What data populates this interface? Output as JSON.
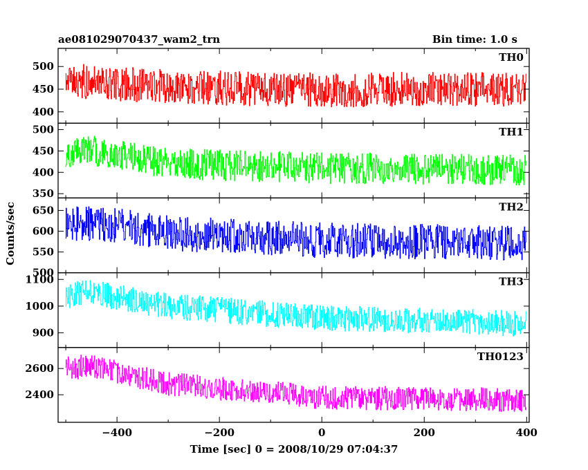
{
  "header": {
    "title": "ae081029070437_wam2_trn",
    "bin_time": "Bin time: 1.0 s"
  },
  "chart_data": {
    "type": "line",
    "title": "ae081029070437_wam2_trn",
    "subtitle": "Bin time: 1.0 s",
    "xlabel": "Time [sec] 0 = 2008/10/29 07:04:37",
    "ylabel": "Counts/sec",
    "xlim": [
      -515,
      405
    ],
    "x_ticks": [
      -400,
      -200,
      0,
      200,
      400
    ],
    "x_tick_labels": [
      "−400",
      "−200",
      "0",
      "200",
      "400"
    ],
    "x_sampling": {
      "start": -500,
      "end": 399,
      "step": 1
    },
    "panels": [
      {
        "name": "TH0",
        "color": "#ff0000",
        "ylim": [
          375,
          540
        ],
        "yticks": [
          400,
          450,
          500
        ],
        "trend": [
          [
            -500,
            470
          ],
          [
            -300,
            455
          ],
          [
            0,
            448
          ],
          [
            200,
            450
          ],
          [
            400,
            450
          ]
        ],
        "noise_amplitude": 38
      },
      {
        "name": "TH1",
        "color": "#00ff00",
        "ylim": [
          340,
          515
        ],
        "yticks": [
          350,
          400,
          450,
          500
        ],
        "trend": [
          [
            -500,
            445
          ],
          [
            -450,
            450
          ],
          [
            -300,
            420
          ],
          [
            0,
            410
          ],
          [
            200,
            408
          ],
          [
            400,
            405
          ]
        ],
        "noise_amplitude": 36
      },
      {
        "name": "TH2",
        "color": "#0000ff",
        "ylim": [
          500,
          680
        ],
        "yticks": [
          500,
          550,
          600,
          650
        ],
        "trend": [
          [
            -500,
            620
          ],
          [
            -400,
            615
          ],
          [
            -300,
            595
          ],
          [
            0,
            578
          ],
          [
            200,
            575
          ],
          [
            400,
            572
          ]
        ],
        "noise_amplitude": 42
      },
      {
        "name": "TH3",
        "color": "#00ffff",
        "ylim": [
          845,
          1125
        ],
        "yticks": [
          900,
          1000,
          1100
        ],
        "trend": [
          [
            -500,
            1040
          ],
          [
            -450,
            1050
          ],
          [
            -300,
            1000
          ],
          [
            0,
            955
          ],
          [
            200,
            945
          ],
          [
            400,
            935
          ]
        ],
        "noise_amplitude": 48
      },
      {
        "name": "TH0123",
        "color": "#ff00ff",
        "ylim": [
          2190,
          2760
        ],
        "yticks": [
          2400,
          2600
        ],
        "trend": [
          [
            -500,
            2600
          ],
          [
            -450,
            2620
          ],
          [
            -300,
            2480
          ],
          [
            0,
            2380
          ],
          [
            200,
            2370
          ],
          [
            400,
            2360
          ]
        ],
        "noise_amplitude": 90
      }
    ],
    "grid": false,
    "legend": "none"
  }
}
